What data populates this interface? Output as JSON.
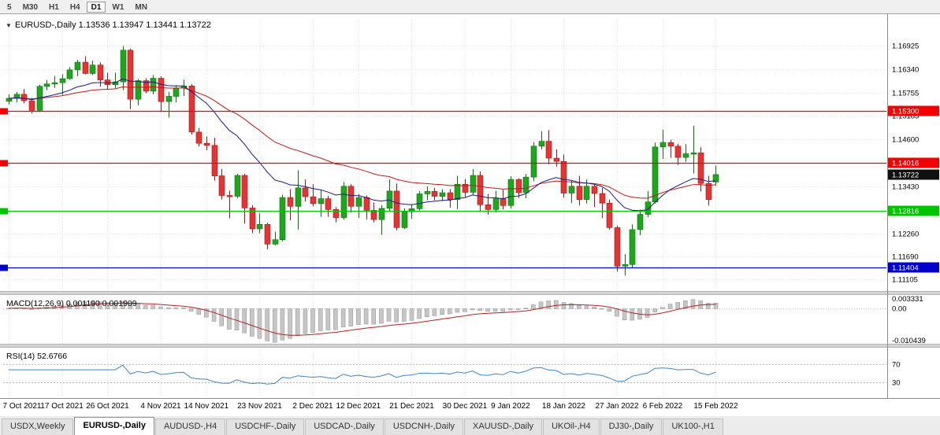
{
  "toolbar": {
    "timeframes": [
      "5",
      "M30",
      "H1",
      "H4",
      "D1",
      "W1",
      "MN"
    ],
    "active_timeframe": "D1"
  },
  "chart_header": {
    "dropdown_icon": "▼",
    "symbol_label": "EURUSD-,Daily",
    "open": "1.13536",
    "high": "1.13947",
    "low": "1.13441",
    "close": "1.13722"
  },
  "colors": {
    "candle_up": "#1fa51f",
    "candle_up_border": "#0c720c",
    "candle_down": "#e23535",
    "candle_down_border": "#a01616",
    "ma_fast": "#191984",
    "ma_slow": "#c01818",
    "macd_histogram": "#c6c6c6",
    "macd_histogram_border": "#9e9e9e",
    "macd_signal": "#b22222",
    "rsi_line": "#3d85c8",
    "grid": "#e0e0e0",
    "axis_line": "#8a8a8a",
    "hline_red": "#f50000",
    "hline_green": "#00c400",
    "hline_blue": "#0000cc",
    "current_price_bg": "#101010",
    "separator": "#d4d4d4"
  },
  "chart_data": {
    "type": "candlestick",
    "symbol": "EURUSD-",
    "timeframe": "Daily",
    "title": "EURUSD-,Daily 1.13536 1.13947 1.13441 1.13722",
    "price_axis_range": [
      1.1082,
      1.176
    ],
    "y_axis_labels": [
      "1.16925",
      "1.16340",
      "1.15755",
      "1.15185",
      "1.14600",
      "1.13430",
      "1.12260",
      "1.11690",
      "1.11105"
    ],
    "x_labels": [
      "7 Oct 2021",
      "17 Oct 2021",
      "26 Oct 2021",
      "4 Nov 2021",
      "14 Nov 2021",
      "23 Nov 2021",
      "2 Dec 2021",
      "12 Dec 2021",
      "21 Dec 2021",
      "30 Dec 2021",
      "9 Jan 2022",
      "18 Jan 2022",
      "27 Jan 2022",
      "6 Feb 2022",
      "15 Feb 2022"
    ],
    "x_label_indices": [
      0,
      7,
      13,
      20,
      26,
      33,
      40,
      46,
      53,
      60,
      66,
      73,
      80,
      86,
      93
    ],
    "current_price_label": "1.13722",
    "current_price": 1.13722,
    "hlines": [
      {
        "label": "1.15300",
        "price": 1.153,
        "color_key": "hline_red"
      },
      {
        "label": "1.14016",
        "price": 1.14016,
        "color_key": "hline_red"
      },
      {
        "label": "1.12816",
        "price": 1.12816,
        "color_key": "hline_green"
      },
      {
        "label": "1.11404",
        "price": 1.11404,
        "color_key": "hline_blue"
      }
    ],
    "candles_ohlc": [
      [
        1.1555,
        1.1572,
        1.1547,
        1.1562
      ],
      [
        1.1562,
        1.1578,
        1.1552,
        1.1572
      ],
      [
        1.1572,
        1.1585,
        1.155,
        1.1556
      ],
      [
        1.1556,
        1.1563,
        1.1524,
        1.1532
      ],
      [
        1.1532,
        1.1596,
        1.1528,
        1.1592
      ],
      [
        1.1592,
        1.1608,
        1.1582,
        1.1598
      ],
      [
        1.1598,
        1.1618,
        1.1588,
        1.1601
      ],
      [
        1.1601,
        1.1622,
        1.1571,
        1.1611
      ],
      [
        1.1611,
        1.164,
        1.1608,
        1.1633
      ],
      [
        1.1633,
        1.1658,
        1.1617,
        1.1652
      ],
      [
        1.1652,
        1.1667,
        1.1622,
        1.1624
      ],
      [
        1.1624,
        1.1656,
        1.162,
        1.1645
      ],
      [
        1.1645,
        1.1652,
        1.1591,
        1.1608
      ],
      [
        1.1608,
        1.1626,
        1.1585,
        1.1596
      ],
      [
        1.1596,
        1.1626,
        1.1587,
        1.1603
      ],
      [
        1.1603,
        1.16925,
        1.1582,
        1.1682
      ],
      [
        1.1682,
        1.1686,
        1.1535,
        1.156
      ],
      [
        1.156,
        1.161,
        1.1545,
        1.1606
      ],
      [
        1.1606,
        1.1612,
        1.1575,
        1.158
      ],
      [
        1.158,
        1.162,
        1.1572,
        1.1612
      ],
      [
        1.1612,
        1.1617,
        1.1528,
        1.1554
      ],
      [
        1.1554,
        1.1578,
        1.1514,
        1.1567
      ],
      [
        1.1567,
        1.1595,
        1.1552,
        1.1588
      ],
      [
        1.1588,
        1.1609,
        1.1568,
        1.1593
      ],
      [
        1.1593,
        1.1598,
        1.1472,
        1.1478
      ],
      [
        1.1478,
        1.1488,
        1.1442,
        1.145
      ],
      [
        1.145,
        1.1467,
        1.1433,
        1.1445
      ],
      [
        1.1445,
        1.1464,
        1.1357,
        1.1369
      ],
      [
        1.1369,
        1.1386,
        1.131,
        1.132
      ],
      [
        1.132,
        1.1332,
        1.1263,
        1.1318
      ],
      [
        1.1318,
        1.1374,
        1.1313,
        1.137
      ],
      [
        1.137,
        1.1374,
        1.125,
        1.1289
      ],
      [
        1.1289,
        1.1296,
        1.1226,
        1.1237
      ],
      [
        1.1237,
        1.1275,
        1.1226,
        1.1248
      ],
      [
        1.1248,
        1.1252,
        1.1186,
        1.1199
      ],
      [
        1.1199,
        1.123,
        1.1196,
        1.121
      ],
      [
        1.121,
        1.1322,
        1.1206,
        1.1315
      ],
      [
        1.1315,
        1.1336,
        1.1258,
        1.1293
      ],
      [
        1.1293,
        1.1383,
        1.1235,
        1.1339
      ],
      [
        1.1339,
        1.136,
        1.1305,
        1.1317
      ],
      [
        1.1317,
        1.1348,
        1.1293,
        1.13
      ],
      [
        1.13,
        1.1334,
        1.1267,
        1.1312
      ],
      [
        1.1312,
        1.1319,
        1.1267,
        1.1285
      ],
      [
        1.1285,
        1.1291,
        1.1253,
        1.1265
      ],
      [
        1.1265,
        1.1354,
        1.126,
        1.1343
      ],
      [
        1.1343,
        1.1348,
        1.1278,
        1.1293
      ],
      [
        1.1293,
        1.1324,
        1.1264,
        1.1315
      ],
      [
        1.1315,
        1.132,
        1.1261,
        1.1283
      ],
      [
        1.1283,
        1.1303,
        1.1253,
        1.126
      ],
      [
        1.126,
        1.1296,
        1.1222,
        1.1288
      ],
      [
        1.1288,
        1.136,
        1.1282,
        1.1331
      ],
      [
        1.1331,
        1.135,
        1.1233,
        1.124
      ],
      [
        1.124,
        1.1288,
        1.1237,
        1.128
      ],
      [
        1.128,
        1.1298,
        1.1262,
        1.1287
      ],
      [
        1.1287,
        1.1331,
        1.1283,
        1.1324
      ],
      [
        1.1324,
        1.1343,
        1.1308,
        1.133
      ],
      [
        1.133,
        1.1339,
        1.1308,
        1.1318
      ],
      [
        1.1318,
        1.1336,
        1.1306,
        1.1327
      ],
      [
        1.1327,
        1.1336,
        1.129,
        1.131
      ],
      [
        1.131,
        1.1369,
        1.1286,
        1.1348
      ],
      [
        1.1348,
        1.1361,
        1.1315,
        1.1328
      ],
      [
        1.1328,
        1.1386,
        1.1321,
        1.137
      ],
      [
        1.137,
        1.138,
        1.1279,
        1.1297
      ],
      [
        1.1297,
        1.1324,
        1.1272,
        1.1285
      ],
      [
        1.1285,
        1.1332,
        1.1278,
        1.1312
      ],
      [
        1.1312,
        1.1334,
        1.1285,
        1.1295
      ],
      [
        1.1295,
        1.1368,
        1.1287,
        1.136
      ],
      [
        1.136,
        1.1363,
        1.1314,
        1.1327
      ],
      [
        1.1327,
        1.1374,
        1.1313,
        1.1366
      ],
      [
        1.1366,
        1.1453,
        1.1356,
        1.1443
      ],
      [
        1.1443,
        1.148,
        1.1435,
        1.1455
      ],
      [
        1.1455,
        1.1483,
        1.1398,
        1.1413
      ],
      [
        1.1413,
        1.1435,
        1.1392,
        1.1405
      ],
      [
        1.1405,
        1.1422,
        1.1315,
        1.1326
      ],
      [
        1.1326,
        1.1357,
        1.1301,
        1.1343
      ],
      [
        1.1343,
        1.1369,
        1.1295,
        1.131
      ],
      [
        1.131,
        1.136,
        1.13,
        1.1343
      ],
      [
        1.1343,
        1.1349,
        1.1291,
        1.1325
      ],
      [
        1.1325,
        1.1339,
        1.1264,
        1.1301
      ],
      [
        1.1301,
        1.131,
        1.1235,
        1.124
      ],
      [
        1.124,
        1.1245,
        1.1131,
        1.1144
      ],
      [
        1.1144,
        1.1174,
        1.1121,
        1.1148
      ],
      [
        1.1148,
        1.1248,
        1.1141,
        1.1235
      ],
      [
        1.1235,
        1.1285,
        1.1221,
        1.1273
      ],
      [
        1.1273,
        1.1331,
        1.1266,
        1.1304
      ],
      [
        1.1304,
        1.1452,
        1.13,
        1.1441
      ],
      [
        1.1441,
        1.1484,
        1.1411,
        1.1452
      ],
      [
        1.1452,
        1.1459,
        1.1414,
        1.1443
      ],
      [
        1.1443,
        1.1449,
        1.1396,
        1.1415
      ],
      [
        1.1415,
        1.1448,
        1.1404,
        1.1424
      ],
      [
        1.1424,
        1.1494,
        1.1375,
        1.1426
      ],
      [
        1.1426,
        1.144,
        1.133,
        1.135
      ],
      [
        1.135,
        1.1369,
        1.1295,
        1.131
      ],
      [
        1.13536,
        1.13947,
        1.13441,
        1.13722
      ]
    ],
    "indicators": {
      "ma_fast_period": 16,
      "ma_slow_period": 36,
      "macd": {
        "title": "MACD(12,26,9) 0.001190 0.001909",
        "fast": 12,
        "slow": 26,
        "signal": 9,
        "axis_labels": [
          "0.003331",
          "0.00",
          "-0.010439"
        ]
      },
      "rsi": {
        "title": "RSI(14) 52.6766",
        "period": 14,
        "levels": [
          70,
          30
        ],
        "level_labels": [
          "70",
          "30"
        ]
      }
    }
  },
  "tabs": {
    "items": [
      "USDX,Weekly",
      "EURUSD-,Daily",
      "AUDUSD-,H4",
      "USDCHF-,Daily",
      "USDCAD-,Daily",
      "USDCNH-,Daily",
      "XAUUSD-,Daily",
      "UKOil-,H4",
      "DJ30-,Daily",
      "UK100-,H1"
    ],
    "active_index": 1
  }
}
